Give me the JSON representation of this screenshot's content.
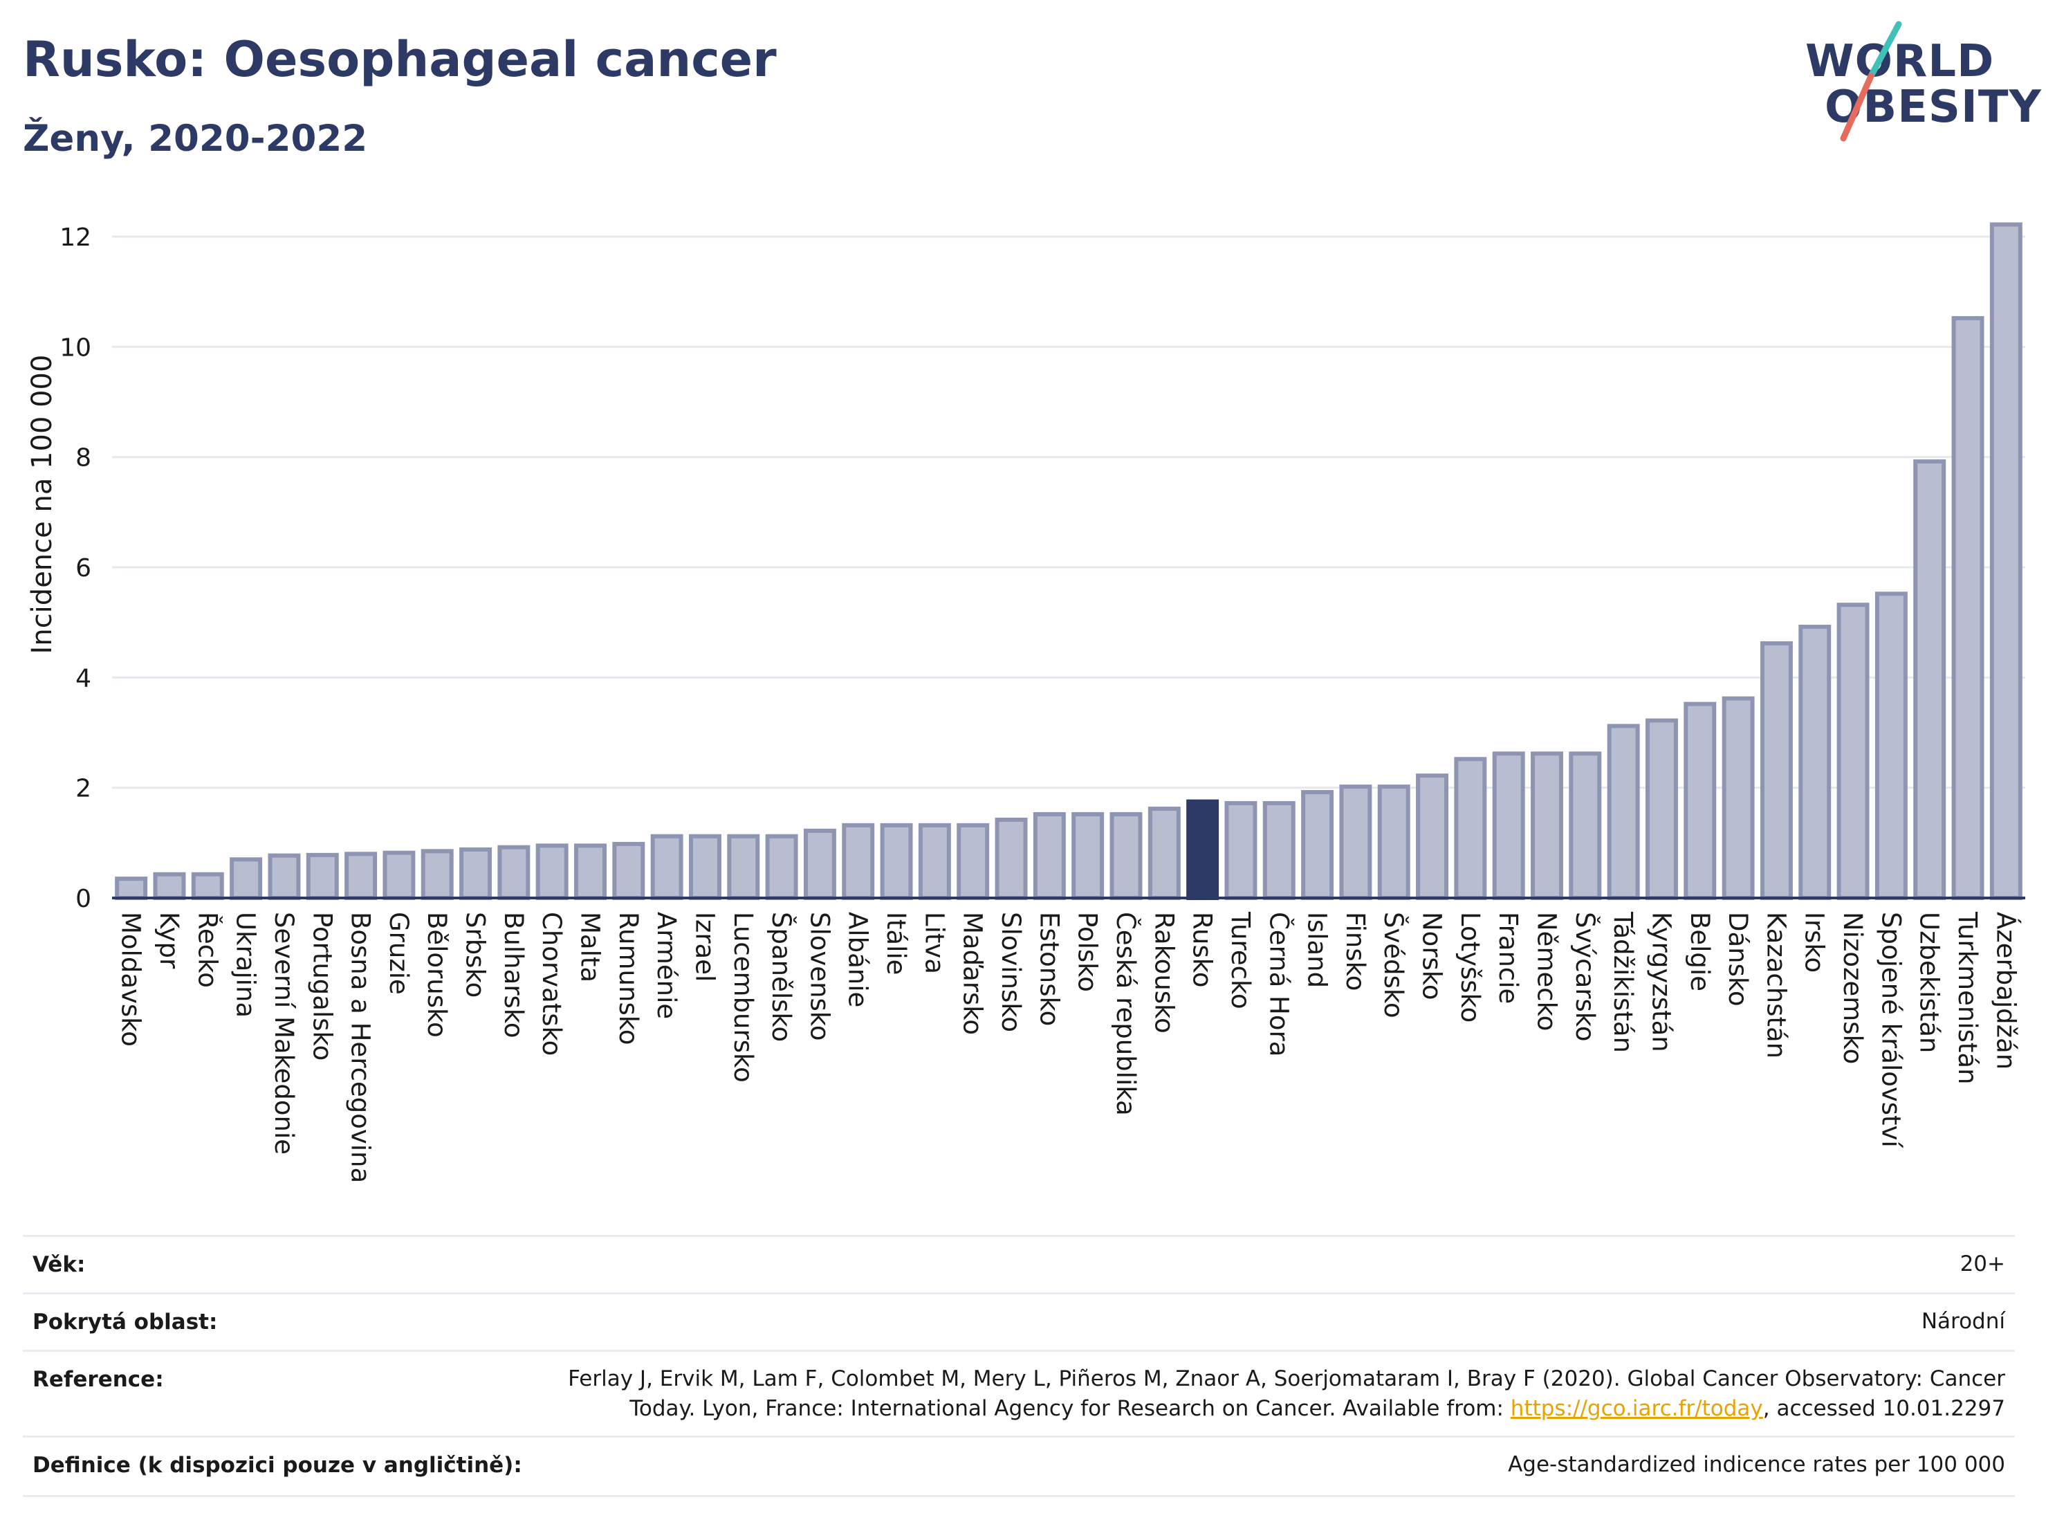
{
  "header": {
    "title": "Rusko: Oesophageal cancer",
    "subtitle": "Ženy, 2020-2022"
  },
  "logo": {
    "line1": "WORLD",
    "line2": "OBESITY"
  },
  "chart_data": {
    "type": "bar",
    "ylabel": "Incidence na 100 000",
    "xlabel": "",
    "ylim": [
      0,
      12.5
    ],
    "yticks": [
      0,
      2,
      4,
      6,
      8,
      10,
      12
    ],
    "grid": true,
    "highlight": "Rusko",
    "colors": {
      "bar": "#b8bed0",
      "bar_edge": "#8d95b3",
      "highlight": "#2e3a66",
      "grid": "#e6e8ef"
    },
    "categories": [
      "Moldavsko",
      "Kypr",
      "Řecko",
      "Ukrajina",
      "Severní Makedonie",
      "Portugalsko",
      "Bosna a Hercegovina",
      "Gruzie",
      "Bělorusko",
      "Srbsko",
      "Bulharsko",
      "Chorvatsko",
      "Malta",
      "Rumunsko",
      "Arménie",
      "Izrael",
      "Lucembursko",
      "Španělsko",
      "Slovensko",
      "Albánie",
      "Itálie",
      "Litva",
      "Maďarsko",
      "Slovinsko",
      "Estonsko",
      "Polsko",
      "Česká republika",
      "Rakousko",
      "Rusko",
      "Turecko",
      "Černá Hora",
      "Island",
      "Finsko",
      "Švédsko",
      "Norsko",
      "Lotyšsko",
      "Francie",
      "Německo",
      "Švýcarsko",
      "Tádžikistán",
      "Kyrgyzstán",
      "Belgie",
      "Dánsko",
      "Kazachstán",
      "Irsko",
      "Nizozemsko",
      "Spojené království",
      "Uzbekistán",
      "Turkmenistán",
      "Ázerbajdžán"
    ],
    "values": [
      0.35,
      0.43,
      0.43,
      0.7,
      0.77,
      0.78,
      0.8,
      0.82,
      0.85,
      0.88,
      0.92,
      0.95,
      0.95,
      0.98,
      1.12,
      1.12,
      1.12,
      1.12,
      1.22,
      1.32,
      1.32,
      1.32,
      1.32,
      1.42,
      1.52,
      1.52,
      1.52,
      1.62,
      1.75,
      1.72,
      1.72,
      1.92,
      2.02,
      2.02,
      2.22,
      2.52,
      2.62,
      2.62,
      2.62,
      3.12,
      3.22,
      3.52,
      3.62,
      4.62,
      4.92,
      5.32,
      5.52,
      7.92,
      10.52,
      12.22
    ]
  },
  "info": {
    "age_label": "Věk:",
    "age_value": "20+",
    "area_label": "Pokrytá oblast:",
    "area_value": "Národní",
    "ref_label": "Reference:",
    "ref_line1": "Ferlay J, Ervik M, Lam F, Colombet M, Mery L, Piñeros M, Znaor A, Soerjomataram I, Bray F (2020). Global Cancer Observatory: Cancer",
    "ref_line2_pre": "Today. Lyon, France: International Agency for Research on Cancer. Available from: ",
    "ref_link": "https://gco.iarc.fr/today",
    "ref_line2_post": ", accessed 10.01.2297",
    "def_label": "Definice (k dispozici pouze v angličtině):",
    "def_value": "Age-standardized indicence rates per 100 000"
  }
}
